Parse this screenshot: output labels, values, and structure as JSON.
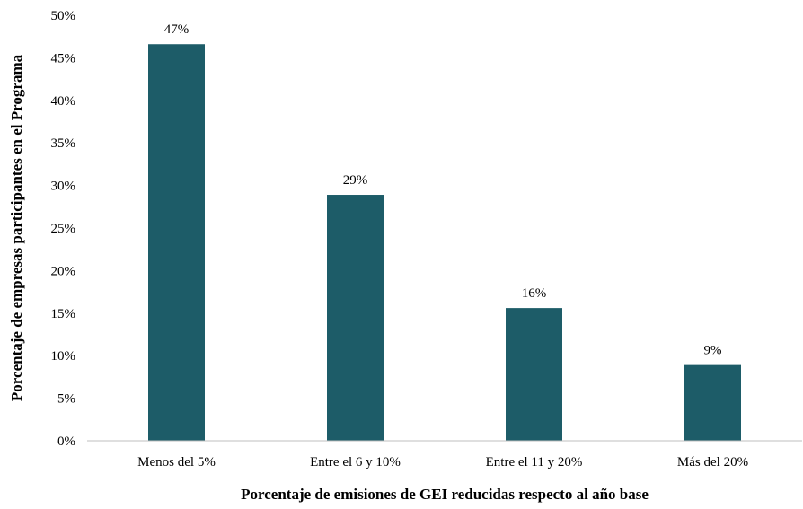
{
  "chart_data": {
    "type": "bar",
    "title": "",
    "xlabel": "Porcentaje de emisiones de GEI reducidas respecto al año base",
    "ylabel": "Porcentaje de empresas participantes en el Programa",
    "categories": [
      "Menos del 5%",
      "Entre el 6 y 10%",
      "Entre el 11 y 20%",
      "Más del 20%"
    ],
    "series": [
      {
        "values": [
          46.6,
          28.9,
          15.6,
          8.9
        ],
        "data_labels": [
          "47%",
          "29%",
          "16%",
          "9%"
        ],
        "color": "#1d5c68"
      }
    ],
    "ylim": [
      0,
      50
    ],
    "yticks": [
      0,
      5,
      10,
      15,
      20,
      25,
      30,
      35,
      40,
      45,
      50
    ],
    "ytick_labels": [
      "0%",
      "5%",
      "10%",
      "15%",
      "20%",
      "25%",
      "30%",
      "35%",
      "40%",
      "45%",
      "50%"
    ],
    "grid": false,
    "legend": "none",
    "axis_color": "#bfbfbf"
  }
}
